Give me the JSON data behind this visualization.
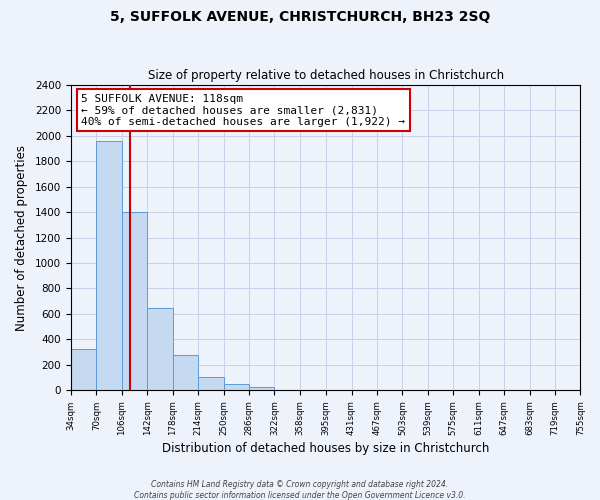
{
  "title": "5, SUFFOLK AVENUE, CHRISTCHURCH, BH23 2SQ",
  "subtitle": "Size of property relative to detached houses in Christchurch",
  "xlabel": "Distribution of detached houses by size in Christchurch",
  "ylabel": "Number of detached properties",
  "bin_edges": [
    34,
    70,
    106,
    142,
    178,
    214,
    250,
    286,
    322,
    358,
    395,
    431,
    467,
    503,
    539,
    575,
    611,
    647,
    683,
    719,
    755
  ],
  "bar_heights": [
    325,
    1960,
    1400,
    645,
    275,
    105,
    50,
    30,
    0,
    0,
    0,
    0,
    0,
    0,
    0,
    0,
    0,
    0,
    0,
    0
  ],
  "bar_color": "#c5d9f0",
  "bar_edge_color": "#5b9bd5",
  "property_size": 118,
  "vline_color": "#cc0000",
  "annotation_line1": "5 SUFFOLK AVENUE: 118sqm",
  "annotation_line2": "← 59% of detached houses are smaller (2,831)",
  "annotation_line3": "40% of semi-detached houses are larger (1,922) →",
  "annotation_box_color": "#ffffff",
  "annotation_box_edge": "#cc0000",
  "ylim": [
    0,
    2400
  ],
  "yticks": [
    0,
    200,
    400,
    600,
    800,
    1000,
    1200,
    1400,
    1600,
    1800,
    2000,
    2200,
    2400
  ],
  "tick_labels": [
    "34sqm",
    "70sqm",
    "106sqm",
    "142sqm",
    "178sqm",
    "214sqm",
    "250sqm",
    "286sqm",
    "322sqm",
    "358sqm",
    "395sqm",
    "431sqm",
    "467sqm",
    "503sqm",
    "539sqm",
    "575sqm",
    "611sqm",
    "647sqm",
    "683sqm",
    "719sqm",
    "755sqm"
  ],
  "footer1": "Contains HM Land Registry data © Crown copyright and database right 2024.",
  "footer2": "Contains public sector information licensed under the Open Government Licence v3.0.",
  "bg_color": "#eef2fa",
  "grid_color": "#c8d0e8"
}
